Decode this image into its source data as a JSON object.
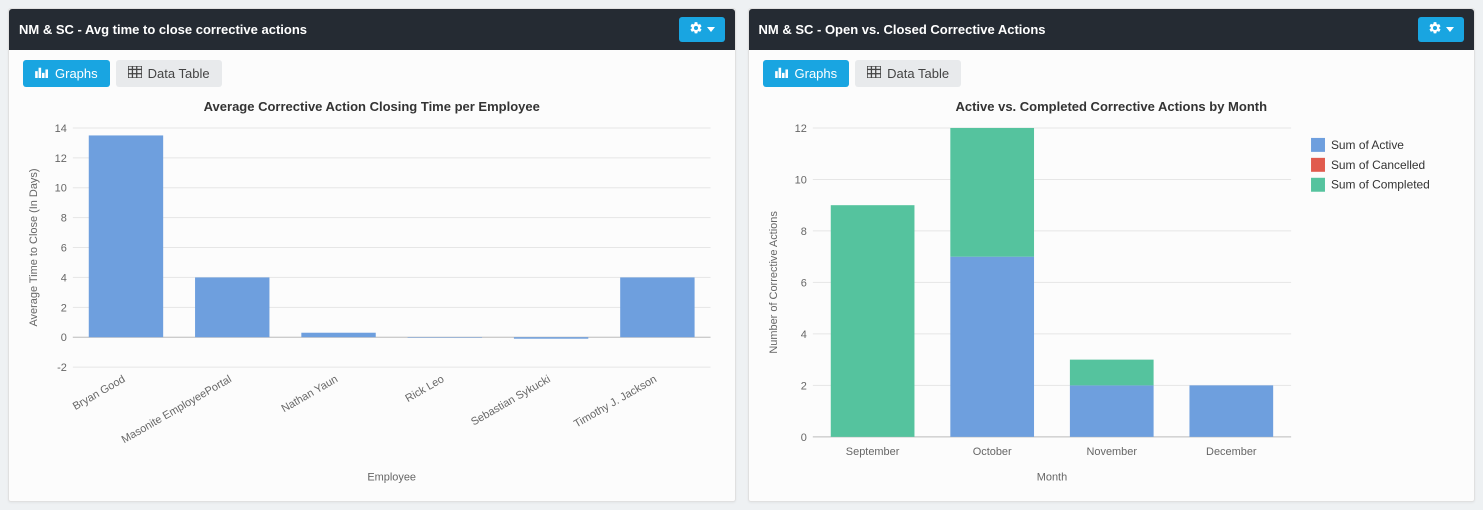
{
  "panels": [
    {
      "title": "NM & SC - Avg time to close corrective actions",
      "tabs": {
        "graphs": "Graphs",
        "data_table": "Data Table",
        "active": "graphs"
      },
      "chart": {
        "type": "bar",
        "title": "Average Corrective Action Closing Time per Employee",
        "title_fontsize": 13,
        "xlabel": "Employee",
        "ylabel": "Average Time to Close (In Days)",
        "label_fontsize": 11,
        "categories": [
          "Bryan Good",
          "Masonite EmployeePortal",
          "Nathan Yaun",
          "Rick Leo",
          "Sebastian Sykucki",
          "Timothy J. Jackson"
        ],
        "values": [
          13.5,
          4,
          0.3,
          0,
          -0.1,
          4
        ],
        "bar_color": "#6e9fde",
        "ylim": [
          -2,
          14
        ],
        "ytick_step": 2,
        "background_color": "#fcfcfc",
        "grid_color": "#e6e6e6",
        "baseline_color": "#bfbfbf",
        "bar_width_ratio": 0.7,
        "xlabel_rotation": -30
      }
    },
    {
      "title": "NM & SC - Open vs. Closed Corrective Actions",
      "tabs": {
        "graphs": "Graphs",
        "data_table": "Data Table",
        "active": "graphs"
      },
      "chart": {
        "type": "stacked-bar",
        "title": "Active vs. Completed Corrective Actions by Month",
        "title_fontsize": 13,
        "xlabel": "Month",
        "ylabel": "Number of Corrective Actions",
        "label_fontsize": 11,
        "categories": [
          "September",
          "October",
          "November",
          "December"
        ],
        "series": [
          {
            "name": "Sum of Active",
            "color": "#6e9fde",
            "values": [
              0,
              7,
              2,
              2
            ]
          },
          {
            "name": "Sum of Cancelled",
            "color": "#e15b4e",
            "values": [
              0,
              0,
              0,
              0
            ]
          },
          {
            "name": "Sum of Completed",
            "color": "#55c39e",
            "values": [
              9,
              5,
              1,
              0
            ]
          }
        ],
        "ylim": [
          0,
          12
        ],
        "ytick_step": 2,
        "background_color": "#fcfcfc",
        "grid_color": "#e6e6e6",
        "baseline_color": "#bfbfbf",
        "bar_width_ratio": 0.7,
        "legend_position": "top-right"
      }
    }
  ],
  "icons": {
    "gear": "gear-icon",
    "chart": "chart-icon",
    "table": "table-icon",
    "caret": "caret-down-icon"
  },
  "colors": {
    "panel_header_bg": "#252b33",
    "accent": "#19a5e1",
    "tab_inactive_bg": "#e8eaec",
    "page_bg": "#eef1f3"
  }
}
